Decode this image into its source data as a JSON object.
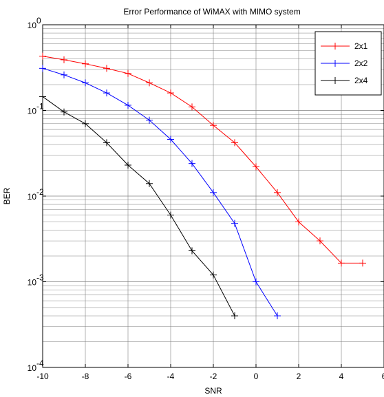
{
  "chart_data": {
    "type": "line",
    "title": "Error Performance of WiMAX with MIMO system",
    "xlabel": "SNR",
    "ylabel": "BER",
    "xlim": [
      -10,
      6
    ],
    "ylim": [
      0.0001,
      1
    ],
    "yscale": "log",
    "x_ticks": [
      -10,
      -8,
      -6,
      -4,
      -2,
      0,
      2,
      4,
      6
    ],
    "x_tick_labels": [
      "-10",
      "-8",
      "-6",
      "-4",
      "-2",
      "0",
      "2",
      "4",
      "6"
    ],
    "y_tick_base": "10",
    "y_tick_exponents": [
      "-4",
      "-3",
      "-2",
      "-1",
      "0"
    ],
    "grid": true,
    "legend_position": "top-right",
    "series": [
      {
        "name": "2x1",
        "color": "#ff0000",
        "marker": "plus",
        "x": [
          -10,
          -9,
          -8,
          -7,
          -6,
          -5,
          -4,
          -3,
          -2,
          -1,
          0,
          1,
          2,
          3,
          4,
          5
        ],
        "y": [
          0.43,
          0.39,
          0.35,
          0.31,
          0.27,
          0.21,
          0.16,
          0.11,
          0.067,
          0.042,
          0.022,
          0.011,
          0.005,
          0.003,
          0.00165,
          0.00165
        ]
      },
      {
        "name": "2x2",
        "color": "#0000ff",
        "marker": "plus",
        "x": [
          -10,
          -9,
          -8,
          -7,
          -6,
          -5,
          -4,
          -3,
          -2,
          -1,
          0,
          1
        ],
        "y": [
          0.31,
          0.26,
          0.21,
          0.16,
          0.115,
          0.077,
          0.046,
          0.024,
          0.011,
          0.0048,
          0.001,
          0.0004
        ]
      },
      {
        "name": "2x4",
        "color": "#000000",
        "marker": "plus",
        "x": [
          -10,
          -9,
          -8,
          -7,
          -6,
          -5,
          -4,
          -3,
          -2,
          -1
        ],
        "y": [
          0.145,
          0.096,
          0.07,
          0.042,
          0.023,
          0.014,
          0.006,
          0.0023,
          0.0012,
          0.0004
        ]
      }
    ]
  }
}
